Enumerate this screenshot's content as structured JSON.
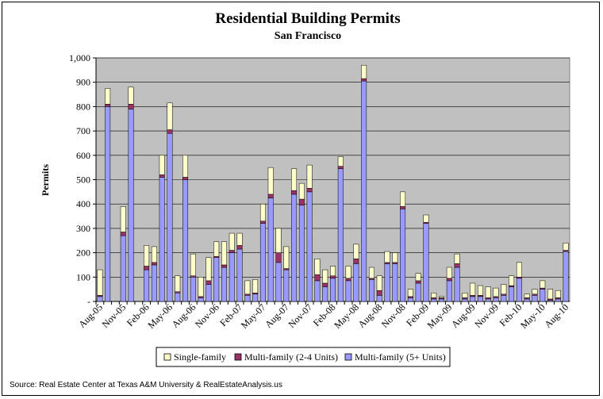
{
  "chart_data": {
    "type": "bar",
    "stacked": true,
    "title": "Residential Building Permits",
    "subtitle": "San Francisco",
    "ylabel": "Permits",
    "xlabel": "",
    "ylim": [
      0,
      1000
    ],
    "yticks": [
      "-",
      "100",
      "200",
      "300",
      "400",
      "500",
      "600",
      "700",
      "800",
      "900",
      "1,000"
    ],
    "grid": true,
    "legend_position": "bottom",
    "x_tick_labels": [
      "Aug-05",
      "Nov-05",
      "Feb-06",
      "May-06",
      "Aug-06",
      "Nov-06",
      "Feb-07",
      "May-07",
      "Aug-07",
      "Nov-07",
      "Feb-08",
      "May-08",
      "Aug-08",
      "Nov-08",
      "Feb-09",
      "May-09",
      "Aug-09",
      "Nov-09",
      "Feb-10",
      "May-10",
      "Aug-10"
    ],
    "categories": [
      "Aug-05",
      "Sep-05",
      "Oct-05",
      "Nov-05",
      "Dec-05",
      "Jan-06",
      "Feb-06",
      "Mar-06",
      "Apr-06",
      "May-06",
      "Jun-06",
      "Jul-06",
      "Aug-06",
      "Sep-06",
      "Oct-06",
      "Nov-06",
      "Dec-06",
      "Jan-07",
      "Feb-07",
      "Mar-07",
      "Apr-07",
      "May-07",
      "Jun-07",
      "Jul-07",
      "Aug-07",
      "Sep-07",
      "Oct-07",
      "Nov-07",
      "Dec-07",
      "Jan-08",
      "Feb-08",
      "Mar-08",
      "Apr-08",
      "May-08",
      "Jun-08",
      "Jul-08",
      "Aug-08",
      "Sep-08",
      "Oct-08",
      "Nov-08",
      "Dec-08",
      "Jan-09",
      "Feb-09",
      "Mar-09",
      "Apr-09",
      "May-09",
      "Jun-09",
      "Jul-09",
      "Aug-09",
      "Sep-09",
      "Oct-09",
      "Nov-09",
      "Dec-09",
      "Jan-10",
      "Feb-10",
      "Mar-10",
      "Apr-10",
      "May-10",
      "Jun-10",
      "Jul-10",
      "Aug-10"
    ],
    "series": [
      {
        "name": "Multi-family (5+ Units)",
        "color": "#9999FF",
        "values": [
          20,
          800,
          0,
          270,
          790,
          0,
          130,
          150,
          510,
          690,
          35,
          500,
          100,
          15,
          70,
          180,
          140,
          200,
          215,
          25,
          30,
          320,
          425,
          160,
          130,
          440,
          395,
          450,
          85,
          60,
          95,
          545,
          85,
          155,
          905,
          90,
          25,
          155,
          155,
          380,
          15,
          75,
          320,
          10,
          10,
          85,
          140,
          10,
          20,
          20,
          10,
          15,
          25,
          60,
          95,
          10,
          25,
          50,
          5,
          10,
          205
        ]
      },
      {
        "name": "Multi-family (2-4 Units)",
        "color": "#993366",
        "values": [
          5,
          10,
          0,
          15,
          20,
          0,
          15,
          10,
          10,
          15,
          5,
          10,
          5,
          5,
          15,
          5,
          10,
          10,
          15,
          5,
          5,
          10,
          15,
          40,
          5,
          15,
          25,
          15,
          25,
          15,
          10,
          10,
          10,
          20,
          10,
          5,
          20,
          5,
          5,
          10,
          5,
          10,
          5,
          5,
          5,
          10,
          15,
          5,
          5,
          5,
          5,
          5,
          5,
          5,
          5,
          5,
          5,
          5,
          5,
          5,
          5
        ]
      },
      {
        "name": "Single-family",
        "color": "#FFFFCC",
        "values": [
          105,
          65,
          0,
          105,
          70,
          0,
          85,
          65,
          80,
          110,
          65,
          90,
          90,
          80,
          95,
          60,
          95,
          70,
          50,
          55,
          55,
          70,
          110,
          100,
          90,
          90,
          65,
          95,
          65,
          55,
          40,
          40,
          50,
          60,
          55,
          45,
          60,
          45,
          40,
          60,
          30,
          30,
          30,
          20,
          5,
          45,
          40,
          20,
          50,
          40,
          45,
          35,
          40,
          40,
          60,
          15,
          20,
          30,
          40,
          30,
          30
        ]
      }
    ]
  },
  "source": "Source: Real Estate Center at Texas A&M University & RealEstateAnalysis.us"
}
